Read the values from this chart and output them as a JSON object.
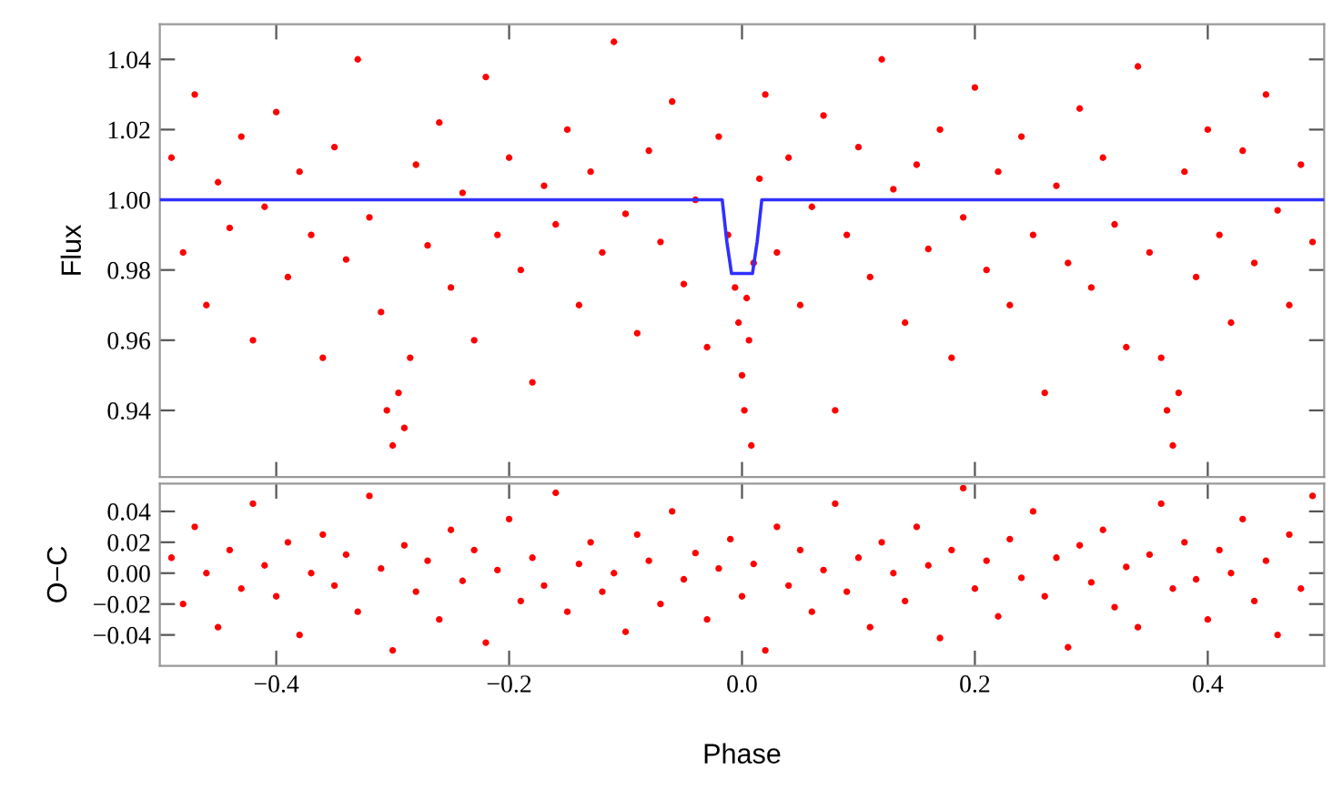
{
  "chart_data": [
    {
      "type": "scatter",
      "ylabel": "Flux",
      "xlim": [
        -0.5,
        0.5
      ],
      "ylim": [
        0.921,
        1.05
      ],
      "xticks": [
        -0.4,
        -0.2,
        0.0,
        0.2,
        0.4
      ],
      "yticks": [
        {
          "value": 0.94,
          "label": "0.94"
        },
        {
          "value": 0.96,
          "label": "0.96"
        },
        {
          "value": 0.98,
          "label": "0.98"
        },
        {
          "value": 1.0,
          "label": "1.00"
        },
        {
          "value": 1.02,
          "label": "1.02"
        },
        {
          "value": 1.04,
          "label": "1.04"
        }
      ],
      "tick_labels": "y",
      "grid": false,
      "series": [
        {
          "marker": "circle",
          "color": "#ff0000",
          "x": [
            -0.49,
            -0.48,
            -0.47,
            -0.46,
            -0.45,
            -0.44,
            -0.43,
            -0.42,
            -0.41,
            -0.4,
            -0.39,
            -0.38,
            -0.37,
            -0.36,
            -0.35,
            -0.34,
            -0.33,
            -0.32,
            -0.31,
            -0.305,
            -0.3,
            -0.295,
            -0.29,
            -0.285,
            -0.28,
            -0.27,
            -0.26,
            -0.25,
            -0.24,
            -0.23,
            -0.22,
            -0.21,
            -0.2,
            -0.19,
            -0.18,
            -0.17,
            -0.16,
            -0.15,
            -0.14,
            -0.13,
            -0.12,
            -0.11,
            -0.1,
            -0.09,
            -0.08,
            -0.07,
            -0.06,
            -0.05,
            -0.04,
            -0.03,
            -0.02,
            -0.012,
            -0.006,
            -0.003,
            0.0,
            0.002,
            0.004,
            0.006,
            0.008,
            0.01,
            0.015,
            0.02,
            0.03,
            0.04,
            0.05,
            0.06,
            0.07,
            0.08,
            0.09,
            0.1,
            0.11,
            0.12,
            0.13,
            0.14,
            0.15,
            0.16,
            0.17,
            0.18,
            0.19,
            0.2,
            0.21,
            0.22,
            0.23,
            0.24,
            0.25,
            0.26,
            0.27,
            0.28,
            0.29,
            0.3,
            0.31,
            0.32,
            0.33,
            0.34,
            0.35,
            0.36,
            0.365,
            0.37,
            0.375,
            0.38,
            0.39,
            0.4,
            0.41,
            0.42,
            0.43,
            0.44,
            0.45,
            0.46,
            0.47,
            0.48,
            0.49
          ],
          "values": [
            1.012,
            0.985,
            1.03,
            0.97,
            1.005,
            0.992,
            1.018,
            0.96,
            0.998,
            1.025,
            0.978,
            1.008,
            0.99,
            0.955,
            1.015,
            0.983,
            1.04,
            0.995,
            0.968,
            0.94,
            0.93,
            0.945,
            0.935,
            0.955,
            1.01,
            0.987,
            1.022,
            0.975,
            1.002,
            0.96,
            1.035,
            0.99,
            1.012,
            0.98,
            0.948,
            1.004,
            0.993,
            1.02,
            0.97,
            1.008,
            0.985,
            1.045,
            0.996,
            0.962,
            1.014,
            0.988,
            1.028,
            0.976,
            1.0,
            0.958,
            1.018,
            0.99,
            0.975,
            0.965,
            0.95,
            0.94,
            0.972,
            0.96,
            0.93,
            0.982,
            1.006,
            1.03,
            0.985,
            1.012,
            0.97,
            0.998,
            1.024,
            0.94,
            0.99,
            1.015,
            0.978,
            1.04,
            1.003,
            0.965,
            1.01,
            0.986,
            1.02,
            0.955,
            0.995,
            1.032,
            0.98,
            1.008,
            0.97,
            1.018,
            0.99,
            0.945,
            1.004,
            0.982,
            1.026,
            0.975,
            1.012,
            0.993,
            0.958,
            1.038,
            0.985,
            0.955,
            0.94,
            0.93,
            0.945,
            1.008,
            0.978,
            1.02,
            0.99,
            0.965,
            1.014,
            0.982,
            1.03,
            0.997,
            0.97,
            1.01,
            0.988
          ]
        },
        {
          "type": "line",
          "color": "#3030ff",
          "x": [
            -0.5,
            -0.017,
            -0.013,
            -0.009,
            0.009,
            0.013,
            0.017,
            0.5
          ],
          "values": [
            1.0,
            1.0,
            0.988,
            0.979,
            0.979,
            0.988,
            1.0,
            1.0
          ]
        }
      ]
    },
    {
      "type": "scatter",
      "ylabel": "O−C",
      "xlabel": "Phase",
      "xlim": [
        -0.5,
        0.5
      ],
      "ylim": [
        -0.06,
        0.058
      ],
      "xticks": [
        {
          "value": -0.4,
          "label": "−0.4"
        },
        {
          "value": -0.2,
          "label": "−0.2"
        },
        {
          "value": 0.0,
          "label": "0.0"
        },
        {
          "value": 0.2,
          "label": "0.2"
        },
        {
          "value": 0.4,
          "label": "0.4"
        }
      ],
      "yticks": [
        {
          "value": -0.04,
          "label": "−0.04"
        },
        {
          "value": -0.02,
          "label": "−0.02"
        },
        {
          "value": 0.0,
          "label": "0.00"
        },
        {
          "value": 0.02,
          "label": "0.02"
        },
        {
          "value": 0.04,
          "label": "0.04"
        }
      ],
      "grid": false,
      "marker": "circle",
      "series": [
        {
          "color": "#ff0000",
          "x": [
            -0.49,
            -0.48,
            -0.47,
            -0.46,
            -0.45,
            -0.44,
            -0.43,
            -0.42,
            -0.41,
            -0.4,
            -0.39,
            -0.38,
            -0.37,
            -0.36,
            -0.35,
            -0.34,
            -0.33,
            -0.32,
            -0.31,
            -0.3,
            -0.29,
            -0.28,
            -0.27,
            -0.26,
            -0.25,
            -0.24,
            -0.23,
            -0.22,
            -0.21,
            -0.2,
            -0.19,
            -0.18,
            -0.17,
            -0.16,
            -0.15,
            -0.14,
            -0.13,
            -0.12,
            -0.11,
            -0.1,
            -0.09,
            -0.08,
            -0.07,
            -0.06,
            -0.05,
            -0.04,
            -0.03,
            -0.02,
            -0.01,
            0.0,
            0.01,
            0.02,
            0.03,
            0.04,
            0.05,
            0.06,
            0.07,
            0.08,
            0.09,
            0.1,
            0.11,
            0.12,
            0.13,
            0.14,
            0.15,
            0.16,
            0.17,
            0.18,
            0.19,
            0.2,
            0.21,
            0.22,
            0.23,
            0.24,
            0.25,
            0.26,
            0.27,
            0.28,
            0.29,
            0.3,
            0.31,
            0.32,
            0.33,
            0.34,
            0.35,
            0.36,
            0.37,
            0.38,
            0.39,
            0.4,
            0.41,
            0.42,
            0.43,
            0.44,
            0.45,
            0.46,
            0.47,
            0.48,
            0.49
          ],
          "values": [
            0.01,
            -0.02,
            0.03,
            0.0,
            -0.035,
            0.015,
            -0.01,
            0.045,
            0.005,
            -0.015,
            0.02,
            -0.04,
            0.0,
            0.025,
            -0.008,
            0.012,
            -0.025,
            0.05,
            0.003,
            -0.05,
            0.018,
            -0.012,
            0.008,
            -0.03,
            0.028,
            -0.005,
            0.015,
            -0.045,
            0.002,
            0.035,
            -0.018,
            0.01,
            -0.008,
            0.052,
            -0.025,
            0.006,
            0.02,
            -0.012,
            0.0,
            -0.038,
            0.025,
            0.008,
            -0.02,
            0.04,
            -0.004,
            0.013,
            -0.03,
            0.003,
            0.022,
            -0.015,
            0.006,
            -0.05,
            0.03,
            -0.008,
            0.015,
            -0.025,
            0.002,
            0.045,
            -0.012,
            0.01,
            -0.035,
            0.02,
            0.0,
            -0.018,
            0.03,
            0.005,
            -0.042,
            0.015,
            0.055,
            -0.01,
            0.008,
            -0.028,
            0.022,
            -0.003,
            0.04,
            -0.015,
            0.01,
            -0.048,
            0.018,
            -0.006,
            0.028,
            -0.022,
            0.004,
            -0.035,
            0.012,
            0.045,
            -0.01,
            0.02,
            -0.004,
            -0.03,
            0.015,
            0.0,
            0.035,
            -0.018,
            0.008,
            -0.04,
            0.025,
            -0.01,
            0.05
          ]
        }
      ]
    }
  ]
}
